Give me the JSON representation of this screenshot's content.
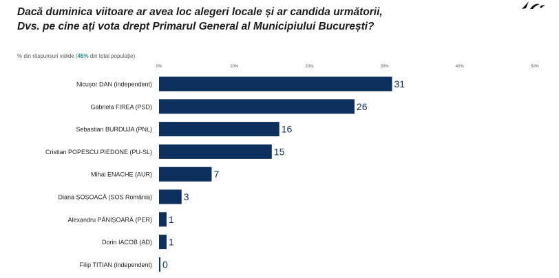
{
  "title_line1": "Dacă duminica viitoare ar avea loc alegeri locale și ar candida următorii,",
  "title_line2": "Dvs. pe cine ați vota drept Primarul General al Municipiului București?",
  "subtitle": {
    "prefix": "% din răspunsuri valide (",
    "highlight": "45%",
    "suffix": " din total populație)"
  },
  "colors": {
    "bar": "#0d2f5e",
    "highlight": "#1f8a8a"
  },
  "chart_data": {
    "type": "bar",
    "orientation": "horizontal",
    "categories": [
      "Nicușor DAN (independent)",
      "Gabriela FIREA (PSD)",
      "Sebastian BURDUJA (PNL)",
      "Cristian POPESCU PIEDONE (PU-SL)",
      "Mihai ENACHE (AUR)",
      "Diana ȘOȘOACĂ (SOS România)",
      "Alexandru PĂNIȘOARĂ (PER)",
      "Dorin IACOB (AD)",
      "Filip TITIAN (independent)"
    ],
    "values": [
      31,
      26,
      16,
      15,
      7,
      3,
      1,
      1,
      0
    ],
    "ticks": [
      "0%",
      "10%",
      "20%",
      "30%",
      "40%",
      "50%"
    ],
    "xlim": [
      0,
      50
    ],
    "grid": false
  }
}
